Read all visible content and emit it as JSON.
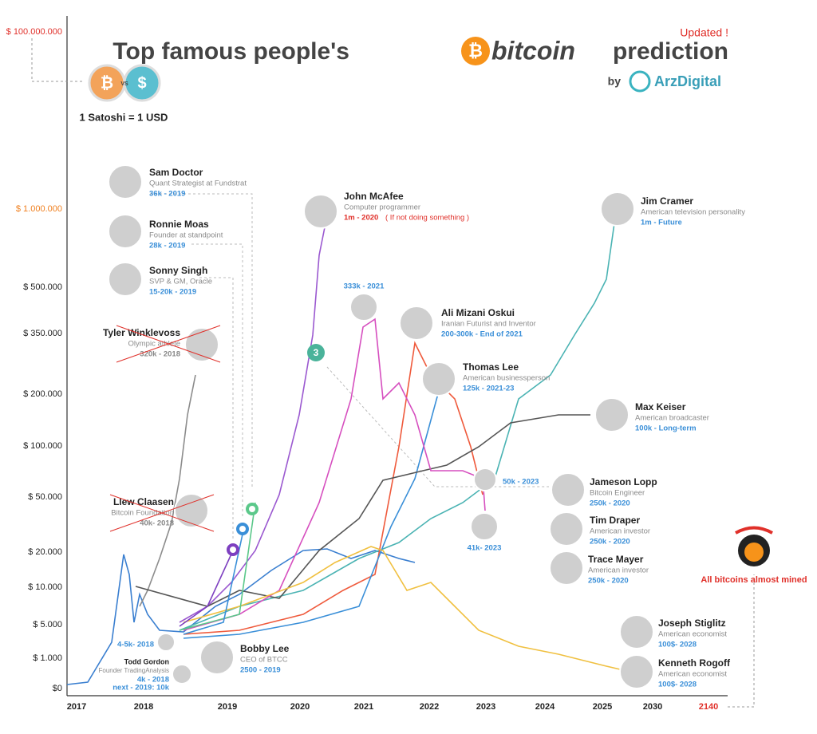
{
  "header": {
    "title_start": "Top famous people's",
    "title_brand": "bitcoin",
    "title_end": "prediction",
    "updated": "Updated !",
    "by": "by",
    "publisher": "ArzDigital",
    "satoshi": "1 Satoshi = 1 USD"
  },
  "y_axis": [
    "$ 100.000.000",
    "$ 1.000.000",
    "$ 500.000",
    "$ 350.000",
    "$ 200.000",
    "$ 100.000",
    "$ 50.000",
    "$ 20.000",
    "$ 10.000",
    "$ 5.000",
    "$ 1.000",
    "$0"
  ],
  "x_axis": [
    "2017",
    "2018",
    "2019",
    "2020",
    "2021",
    "2022",
    "2023",
    "2024",
    "2025",
    "2030",
    "2140"
  ],
  "people": [
    {
      "name": "Sam Doctor",
      "role": "Quant Strategist at Fundstrat",
      "prediction": "36k - 2019"
    },
    {
      "name": "Ronnie Moas",
      "role": "Founder at standpoint",
      "prediction": "28k - 2019"
    },
    {
      "name": "Sonny Singh",
      "role": "SVP & GM, Oracle",
      "prediction": "15-20k - 2019"
    },
    {
      "name": "Tyler Winklevoss",
      "role": "Olympic athlete",
      "prediction": "320k - 2018"
    },
    {
      "name": "John McAfee",
      "role": "Computer programmer",
      "prediction": "1m - 2020",
      "note": "( If not doing something )"
    },
    {
      "name": "Jim Cramer",
      "role": "American television personality",
      "prediction": "1m - Future"
    },
    {
      "name": "Ali Mizani Oskui",
      "role": "Iranian Futurist and Inventor",
      "prediction": "200-300k - End of 2021"
    },
    {
      "name": "Thomas Lee",
      "role": "American businessperson",
      "prediction": "125k - 2021-23"
    },
    {
      "name": "Max Keiser",
      "role": "American broadcaster",
      "prediction": "100k - Long-term"
    },
    {
      "name": "Llew Claasen",
      "role": "Bitcoin Foundation",
      "prediction": "40k- 2018"
    },
    {
      "name": "Jameson Lopp",
      "role": "Bitcoin Engineer",
      "prediction": "250k - 2020"
    },
    {
      "name": "Tim Draper",
      "role": "American investor",
      "prediction": "250k - 2020"
    },
    {
      "name": "Trace Mayer",
      "role": "American investor",
      "prediction": "250k - 2020"
    },
    {
      "name": "Joseph Stiglitz",
      "role": "American economist",
      "prediction": "100$- 2028"
    },
    {
      "name": "Kenneth Rogoff",
      "role": "American economist",
      "prediction": "100$- 2028"
    },
    {
      "name": "Bobby Lee",
      "role": "CEO of BTCC",
      "prediction": "2500 -  2019"
    }
  ],
  "annotations": {
    "a333k": "333k -  2021",
    "a50k": "50k - 2023",
    "a41k": "41k-  2023",
    "a45k": "4-5k- 2018",
    "todd_name": "Todd Gordon",
    "todd_role": "Founder TradingAnalysis",
    "todd_pred": "4k - 2018",
    "todd_next": "next - 2019: 10k",
    "three": "3",
    "mined": "All bitcoins almost mined",
    "vs": "VS"
  }
}
